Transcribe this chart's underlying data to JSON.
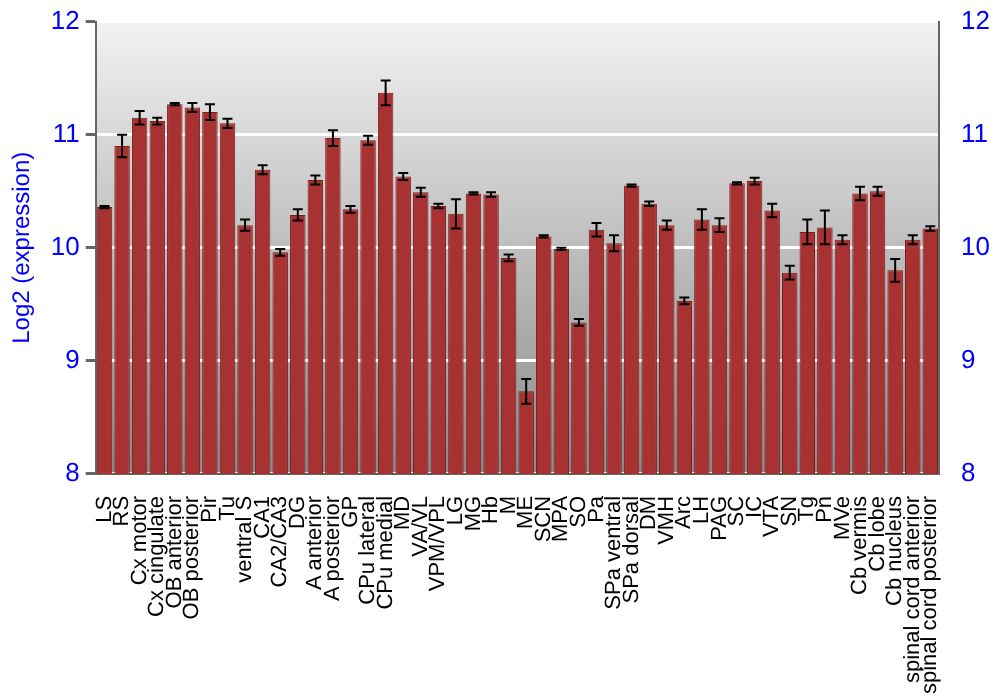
{
  "chart_data": {
    "type": "bar",
    "ylabel": "Log2 (expression)",
    "categories": [
      "LS",
      "RS",
      "Cx motor",
      "Cx cingulate",
      "OB anterior",
      "OB posterior",
      "Pir",
      "Tu",
      "ventral S",
      "CA1",
      "CA2/CA3",
      "DG",
      "A anterior",
      "A posterior",
      "GP",
      "CPu lateral",
      "CPu medial",
      "MD",
      "VA/VL",
      "VPM/VPL",
      "LG",
      "MG",
      "Hb",
      "M",
      "ME",
      "SCN",
      "MPA",
      "SO",
      "Pa",
      "SPa ventral",
      "SPa dorsal",
      "DM",
      "VMH",
      "Arc",
      "LH",
      "PAG",
      "SC",
      "IC",
      "VTA",
      "SN",
      "Tg",
      "Pn",
      "MVe",
      "Cb vermis",
      "Cb lobe",
      "Cb nucleus",
      "spinal cord anterior",
      "spinal cord posterior"
    ],
    "values": [
      10.36,
      10.9,
      11.15,
      11.12,
      11.27,
      11.24,
      11.2,
      11.1,
      10.2,
      10.69,
      9.96,
      10.29,
      10.6,
      10.97,
      10.34,
      10.95,
      11.37,
      10.63,
      10.49,
      10.37,
      10.3,
      10.48,
      10.47,
      9.91,
      8.73,
      10.1,
      9.99,
      9.34,
      10.16,
      10.04,
      10.55,
      10.39,
      10.2,
      9.53,
      10.25,
      10.2,
      10.57,
      10.59,
      10.33,
      9.78,
      10.14,
      10.18,
      10.07,
      10.48,
      10.5,
      9.8,
      10.07,
      10.17
    ],
    "errors": [
      0.01,
      0.1,
      0.06,
      0.03,
      0.01,
      0.04,
      0.07,
      0.04,
      0.05,
      0.04,
      0.03,
      0.05,
      0.04,
      0.07,
      0.03,
      0.04,
      0.11,
      0.03,
      0.04,
      0.02,
      0.13,
      0.01,
      0.02,
      0.03,
      0.11,
      0.01,
      0.01,
      0.03,
      0.06,
      0.07,
      0.01,
      0.02,
      0.04,
      0.03,
      0.09,
      0.06,
      0.01,
      0.03,
      0.06,
      0.06,
      0.11,
      0.15,
      0.04,
      0.06,
      0.04,
      0.1,
      0.04,
      0.02
    ],
    "color": "#a83232",
    "ylim": [
      8,
      12
    ],
    "yticks": [
      8,
      9,
      10,
      11,
      12
    ],
    "y2lim": [
      8,
      12
    ],
    "y2ticks": [
      8,
      9,
      10,
      11,
      12
    ],
    "grid": "y"
  }
}
